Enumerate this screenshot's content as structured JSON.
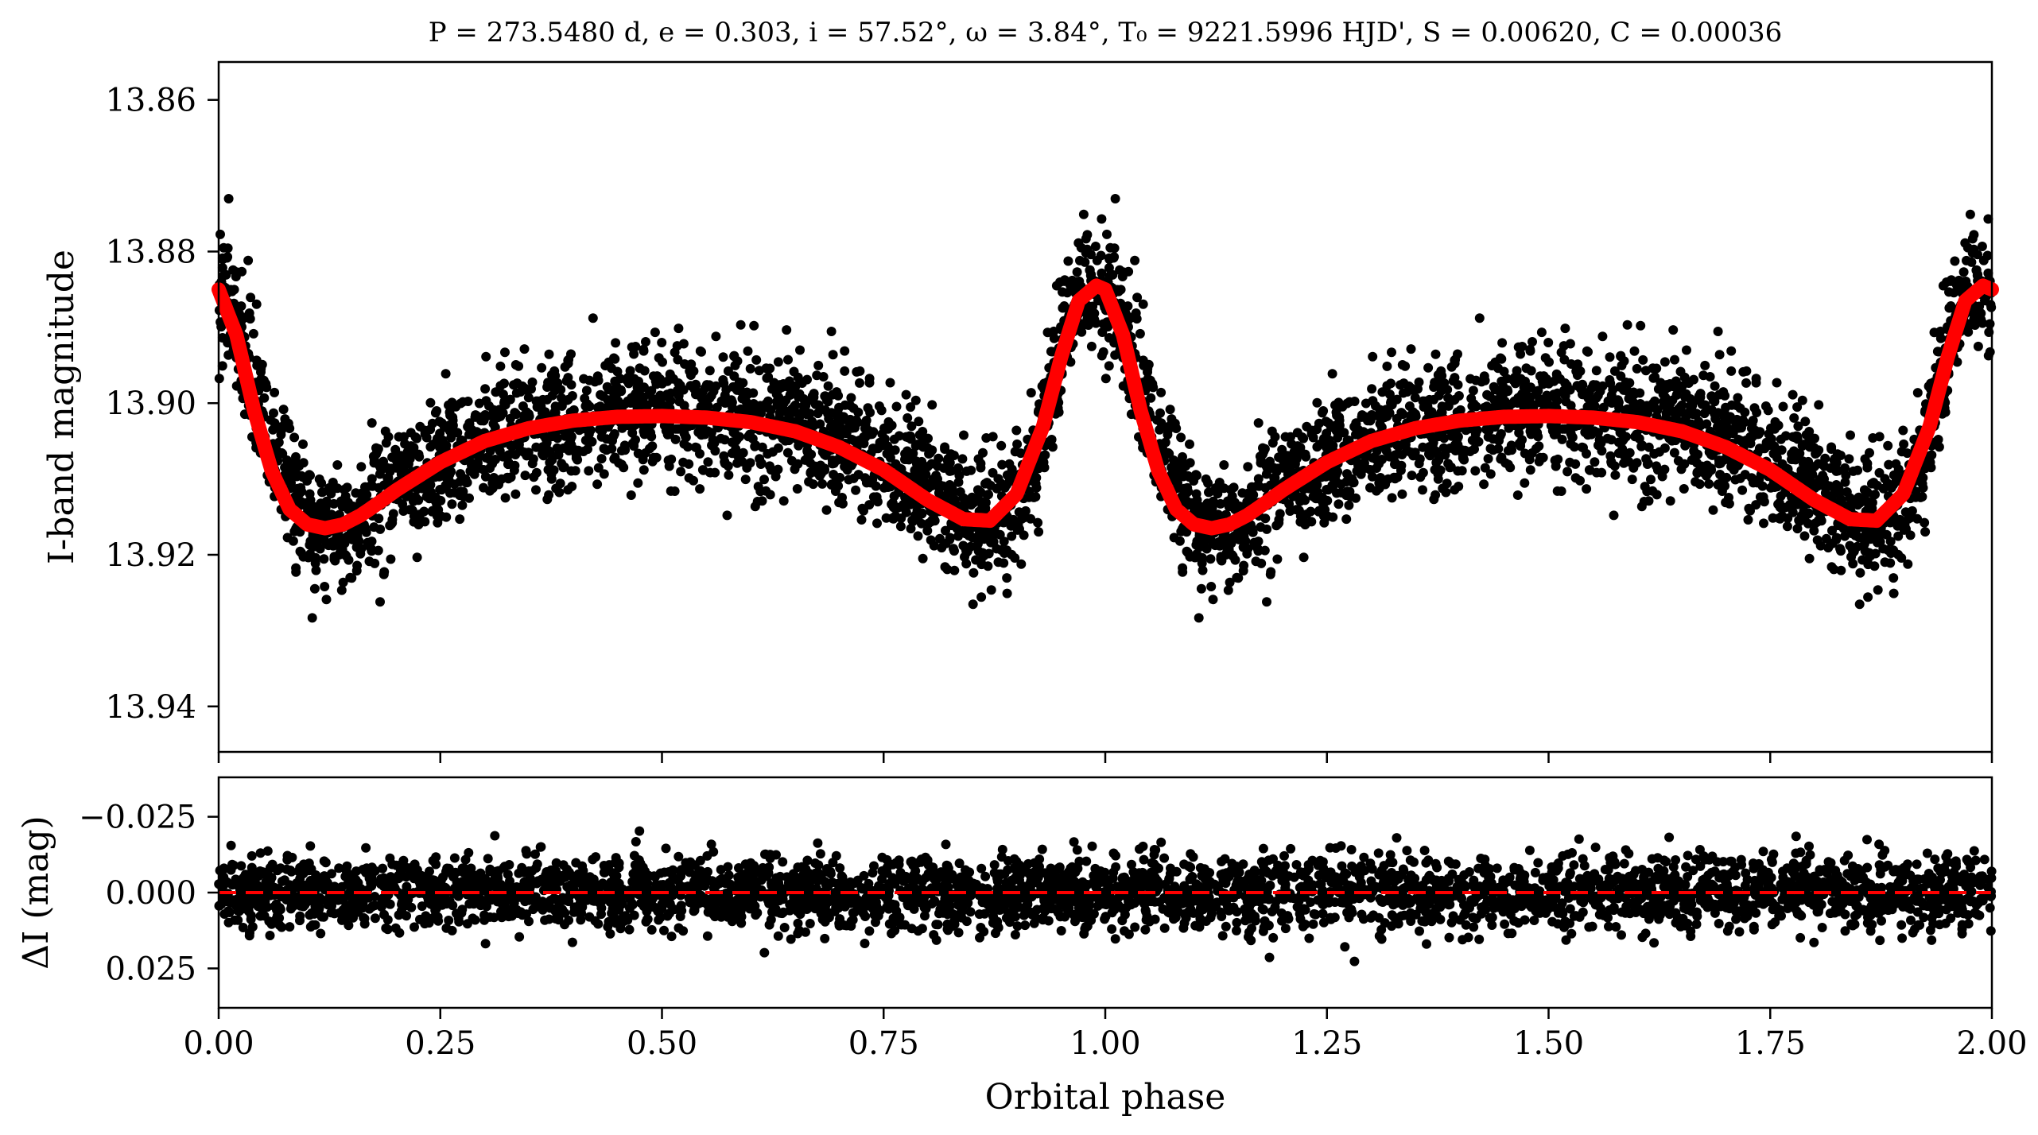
{
  "chart_data": [
    {
      "type": "scatter",
      "title": "P = 273.5480 d, e = 0.303, i = 57.52°, ω = 3.84°, T₀ = 9221.5996 HJD', S = 0.00620, C = 0.00036",
      "ylabel": "I-band magnitude",
      "xlabel": "",
      "xlim": [
        0.0,
        2.0
      ],
      "ylim": [
        13.946,
        13.855
      ],
      "y_inverted": true,
      "yticks": [
        13.86,
        13.88,
        13.9,
        13.92,
        13.94
      ],
      "ytick_labels": [
        "13.86",
        "13.88",
        "13.90",
        "13.92",
        "13.94"
      ],
      "xticks": [
        0.0,
        0.25,
        0.5,
        0.75,
        1.0,
        1.25,
        1.5,
        1.75,
        2.0
      ],
      "grid": false,
      "series": [
        {
          "role": "observations",
          "color": "#000000",
          "marker": "filled-circle",
          "phase_period": 1.0,
          "x": [
            0.0,
            0.02,
            0.04,
            0.06,
            0.08,
            0.1,
            0.12,
            0.14,
            0.16,
            0.18,
            0.2,
            0.25,
            0.3,
            0.35,
            0.4,
            0.45,
            0.5,
            0.55,
            0.6,
            0.65,
            0.7,
            0.75,
            0.8,
            0.84,
            0.87,
            0.9,
            0.93,
            0.95,
            0.97,
            0.99,
            1.0
          ],
          "y": [
            13.885,
            13.89,
            13.898,
            13.905,
            13.911,
            13.915,
            13.916,
            13.917,
            13.915,
            13.913,
            13.911,
            13.907,
            13.904,
            13.903,
            13.902,
            13.901,
            13.901,
            13.901,
            13.902,
            13.903,
            13.905,
            13.907,
            13.911,
            13.914,
            13.916,
            13.913,
            13.903,
            13.893,
            13.885,
            13.884,
            13.885
          ],
          "scatter_sigma": 0.005
        },
        {
          "role": "model",
          "color": "#ff0000",
          "line": "solid",
          "phase_period": 1.0,
          "x": [
            0.0,
            0.02,
            0.04,
            0.06,
            0.08,
            0.1,
            0.12,
            0.14,
            0.16,
            0.18,
            0.2,
            0.25,
            0.3,
            0.35,
            0.4,
            0.45,
            0.5,
            0.55,
            0.6,
            0.65,
            0.7,
            0.75,
            0.8,
            0.84,
            0.87,
            0.9,
            0.93,
            0.95,
            0.97,
            0.99,
            1.0
          ],
          "y": [
            13.885,
            13.891,
            13.901,
            13.909,
            13.914,
            13.916,
            13.9165,
            13.916,
            13.9148,
            13.9132,
            13.9115,
            13.9078,
            13.905,
            13.9033,
            13.9023,
            13.9018,
            13.9017,
            13.9019,
            13.9025,
            13.9037,
            13.9058,
            13.9088,
            13.9128,
            13.9153,
            13.9155,
            13.912,
            13.903,
            13.894,
            13.8865,
            13.8845,
            13.885
          ]
        }
      ]
    },
    {
      "type": "scatter",
      "xlabel": "Orbital phase",
      "ylabel": "ΔI (mag)",
      "xlim": [
        0.0,
        2.0
      ],
      "ylim": [
        0.038,
        -0.038
      ],
      "y_inverted": true,
      "yticks": [
        -0.025,
        0.0,
        0.025
      ],
      "ytick_labels": [
        "−0.025",
        "0.000",
        "0.025"
      ],
      "xticks": [
        0.0,
        0.25,
        0.5,
        0.75,
        1.0,
        1.25,
        1.5,
        1.75,
        2.0
      ],
      "xtick_labels": [
        "0.00",
        "0.25",
        "0.50",
        "0.75",
        "1.00",
        "1.25",
        "1.50",
        "1.75",
        "2.00"
      ],
      "grid": false,
      "series": [
        {
          "role": "residuals",
          "color": "#000000",
          "marker": "filled-circle",
          "x_range": [
            0.0,
            2.0
          ],
          "mean": 0.0,
          "scatter_sigma": 0.006
        },
        {
          "role": "zero-line",
          "color": "#ff0000",
          "line": "dashed",
          "x": [
            0.0,
            2.0
          ],
          "y": [
            0.0,
            0.0
          ]
        }
      ]
    }
  ]
}
